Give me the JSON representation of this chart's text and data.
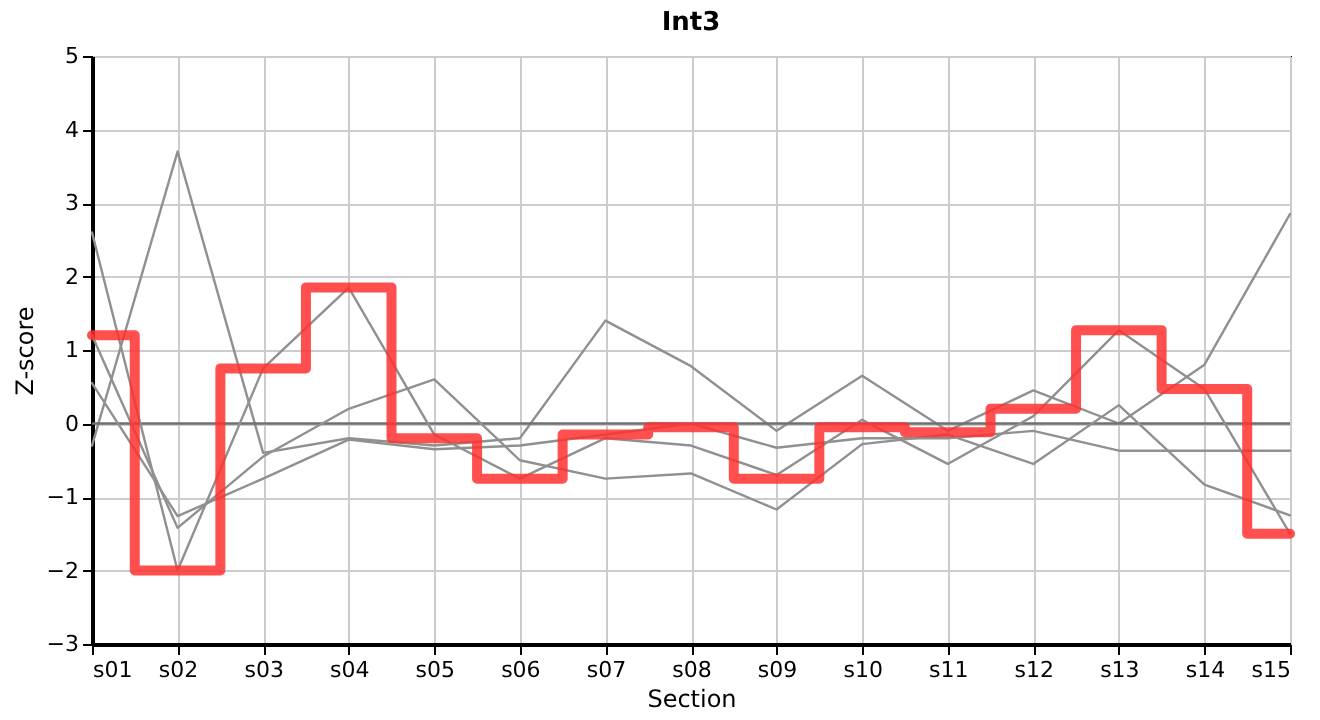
{
  "chart_data": {
    "type": "line",
    "title": "Int3",
    "xlabel": "Section",
    "ylabel": "Z-score",
    "categories": [
      "s01",
      "s02",
      "s03",
      "s04",
      "s05",
      "s06",
      "s07",
      "s08",
      "s09",
      "s10",
      "s11",
      "s12",
      "s13",
      "s14",
      "s15"
    ],
    "series": [
      {
        "color": "#909090",
        "values": [
          -0.3,
          3.7,
          -0.4,
          -0.2,
          -0.3,
          -0.2,
          1.4,
          0.78,
          -0.1,
          0.65,
          -0.1,
          0.45,
          0.0,
          0.8,
          2.85
        ]
      },
      {
        "color": "#909090",
        "values": [
          2.6,
          -2.0,
          0.75,
          1.85,
          -0.15,
          -0.75,
          -0.2,
          -0.3,
          -0.7,
          0.05,
          -0.55,
          0.1,
          1.27,
          0.47,
          -1.5
        ]
      },
      {
        "color": "#909090",
        "values": [
          1.2,
          -1.42,
          -0.45,
          0.2,
          0.6,
          -0.5,
          -0.75,
          -0.68,
          -1.17,
          -0.28,
          -0.15,
          -0.55,
          0.25,
          -0.83,
          -1.25
        ]
      },
      {
        "color": "#909090",
        "values": [
          0.55,
          -1.26,
          -0.75,
          -0.22,
          -0.35,
          -0.3,
          -0.15,
          0.0,
          -0.33,
          -0.2,
          -0.2,
          -0.1,
          -0.37,
          -0.37,
          -0.37
        ]
      },
      {
        "type": "step",
        "color": "#ff3030",
        "values": [
          1.2,
          -2.0,
          0.75,
          1.85,
          -0.2,
          -0.75,
          -0.15,
          -0.05,
          -0.75,
          -0.05,
          -0.12,
          0.2,
          1.27,
          0.47,
          -1.5
        ]
      }
    ],
    "ylim": [
      -3,
      5
    ],
    "yticks": [
      -3,
      -2,
      -1,
      0,
      1,
      2,
      3,
      4,
      5
    ],
    "ref_lines": [
      {
        "axis": "y",
        "value": 0,
        "color": "#707070"
      }
    ],
    "grid": true,
    "legend": false,
    "marker": "none",
    "line_style": "solid"
  }
}
